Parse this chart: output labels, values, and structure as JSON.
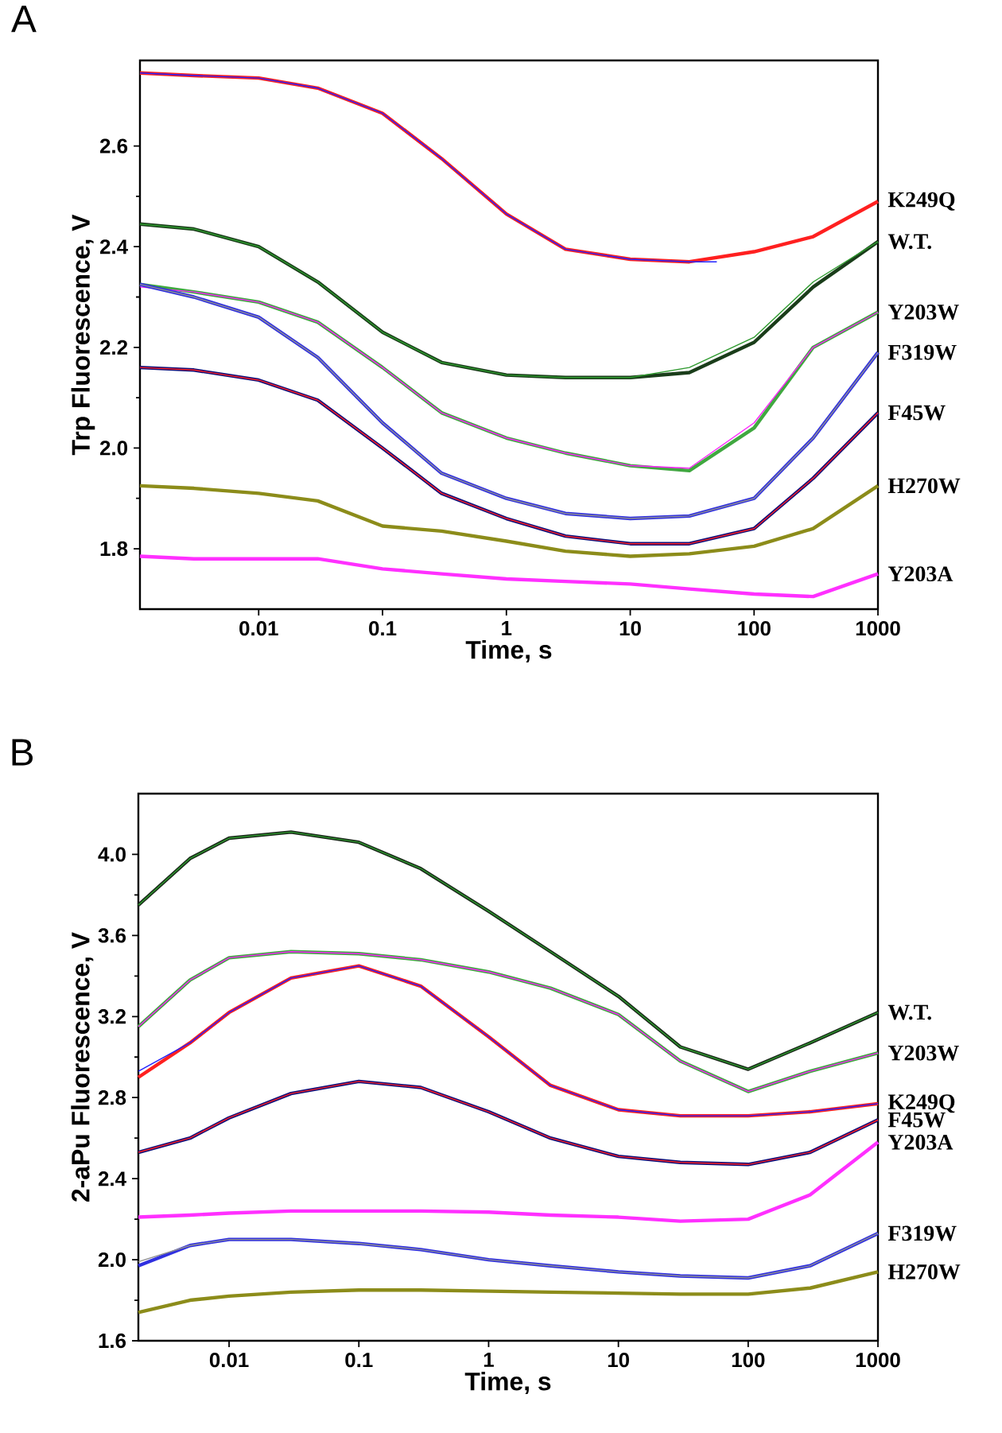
{
  "chart_data": [
    {
      "type": "line",
      "title": "A",
      "xlabel": "Time, s",
      "ylabel": "Trp Fluorescence, V",
      "log": "x",
      "xlim": [
        0.0011,
        1000
      ],
      "ylim": [
        1.68,
        2.77
      ],
      "xticks": [
        0.01,
        0.1,
        1,
        10,
        100,
        1000
      ],
      "yticks": [
        {
          "value": 1.8,
          "label": "1.8"
        },
        {
          "value": 2.0,
          "label": "2.0"
        },
        2.2,
        2.4,
        2.6
      ],
      "x": [
        0.0011,
        0.003,
        0.01,
        0.03,
        0.1,
        0.3,
        1,
        3,
        10,
        30,
        100,
        300,
        1000
      ],
      "series": [
        {
          "name": "K249Q",
          "color": "#ff2020",
          "values": [
            2.745,
            2.74,
            2.735,
            2.715,
            2.665,
            2.575,
            2.465,
            2.395,
            2.375,
            2.37,
            2.39,
            2.42,
            2.49
          ]
        },
        {
          "color": "#2020ff",
          "x": [
            0.0011,
            0.003,
            0.01,
            0.03,
            0.1,
            0.3,
            1,
            3,
            10,
            30,
            50
          ],
          "values": [
            2.745,
            2.74,
            2.735,
            2.715,
            2.665,
            2.575,
            2.465,
            2.395,
            2.375,
            2.37,
            2.37
          ]
        },
        {
          "name": "W.T.",
          "color": "#1a3d1a",
          "values": [
            2.445,
            2.435,
            2.4,
            2.33,
            2.23,
            2.17,
            2.145,
            2.14,
            2.14,
            2.15,
            2.21,
            2.32,
            2.41
          ]
        },
        {
          "color": "#2e9a2e",
          "values": [
            2.445,
            2.435,
            2.4,
            2.33,
            2.23,
            2.17,
            2.145,
            2.14,
            2.14,
            2.16,
            2.22,
            2.33,
            2.41
          ]
        },
        {
          "name": "Y203W",
          "color": "#40a840",
          "values": [
            2.325,
            2.31,
            2.29,
            2.25,
            2.16,
            2.07,
            2.02,
            1.99,
            1.965,
            1.955,
            2.04,
            2.2,
            2.27
          ]
        },
        {
          "color": "#ff20ff",
          "values": [
            2.32,
            2.31,
            2.29,
            2.25,
            2.16,
            2.07,
            2.02,
            1.99,
            1.965,
            1.96,
            2.05,
            2.2,
            2.27
          ]
        },
        {
          "name": "F319W",
          "color": "#3030e0",
          "values": [
            2.325,
            2.3,
            2.26,
            2.18,
            2.05,
            1.95,
            1.9,
            1.87,
            1.86,
            1.865,
            1.9,
            2.02,
            2.19
          ]
        },
        {
          "color": "#909090",
          "values": [
            2.325,
            2.3,
            2.26,
            2.18,
            2.05,
            1.95,
            1.9,
            1.87,
            1.86,
            1.865,
            1.9,
            2.02,
            2.19
          ]
        },
        {
          "name": "F45W",
          "color": "#10107a",
          "values": [
            2.16,
            2.155,
            2.135,
            2.095,
            2.0,
            1.91,
            1.86,
            1.825,
            1.81,
            1.81,
            1.84,
            1.94,
            2.07
          ]
        },
        {
          "color": "#ff2020",
          "values": [
            2.16,
            2.155,
            2.135,
            2.095,
            2.0,
            1.91,
            1.86,
            1.825,
            1.81,
            1.81,
            1.84,
            1.94,
            2.07
          ]
        },
        {
          "name": "H270W",
          "color": "#8c8c1a",
          "values": [
            1.925,
            1.92,
            1.91,
            1.895,
            1.845,
            1.835,
            1.815,
            1.795,
            1.785,
            1.79,
            1.805,
            1.84,
            1.925
          ]
        },
        {
          "name": "Y203A",
          "color": "#ff30ff",
          "values": [
            1.785,
            1.78,
            1.78,
            1.78,
            1.76,
            1.75,
            1.74,
            1.735,
            1.73,
            1.72,
            1.71,
            1.705,
            1.75
          ]
        }
      ]
    },
    {
      "type": "line",
      "title": "B",
      "xlabel": "Time, s",
      "ylabel": "2-aPu Fluorescence, V",
      "log": "x",
      "xlim": [
        0.002,
        1000
      ],
      "ylim": [
        1.6,
        4.3
      ],
      "xticks": [
        0.01,
        0.1,
        1,
        10,
        100,
        1000
      ],
      "yticks": [
        1.6,
        {
          "value": 2.0,
          "label": "2.0"
        },
        2.4,
        2.8,
        3.2,
        3.6,
        {
          "value": 4.0,
          "label": "4.0"
        }
      ],
      "x": [
        0.002,
        0.005,
        0.01,
        0.03,
        0.1,
        0.3,
        1,
        3,
        10,
        30,
        100,
        300,
        1000
      ],
      "series": [
        {
          "name": "W.T.",
          "color": "#1a2a1a",
          "values": [
            3.75,
            3.98,
            4.08,
            4.11,
            4.06,
            3.93,
            3.72,
            3.52,
            3.3,
            3.05,
            2.94,
            3.07,
            3.22
          ]
        },
        {
          "color": "#2e9a2e",
          "values": [
            3.75,
            3.98,
            4.08,
            4.11,
            4.06,
            3.93,
            3.72,
            3.52,
            3.3,
            3.05,
            2.94,
            3.07,
            3.22
          ]
        },
        {
          "name": "Y203W",
          "color": "#40a840",
          "values": [
            3.15,
            3.38,
            3.49,
            3.52,
            3.51,
            3.48,
            3.42,
            3.34,
            3.21,
            2.98,
            2.83,
            2.93,
            3.02
          ]
        },
        {
          "color": "#ff20ff",
          "values": [
            3.15,
            3.38,
            3.49,
            3.52,
            3.51,
            3.48,
            3.42,
            3.34,
            3.21,
            2.98,
            2.83,
            2.93,
            3.02
          ]
        },
        {
          "name": "K249Q",
          "color": "#ff2020",
          "values": [
            2.9,
            3.07,
            3.22,
            3.39,
            3.45,
            3.35,
            3.1,
            2.86,
            2.74,
            2.71,
            2.71,
            2.73,
            2.77
          ]
        },
        {
          "color": "#2020ff",
          "values": [
            2.93,
            3.07,
            3.22,
            3.39,
            3.45,
            3.35,
            3.1,
            2.86,
            2.74,
            2.71,
            2.71,
            2.73,
            2.77
          ]
        },
        {
          "name": "F45W",
          "color": "#10107a",
          "values": [
            2.53,
            2.6,
            2.7,
            2.82,
            2.88,
            2.85,
            2.73,
            2.6,
            2.51,
            2.48,
            2.47,
            2.53,
            2.69
          ]
        },
        {
          "color": "#ff2020",
          "values": [
            2.53,
            2.6,
            2.7,
            2.82,
            2.88,
            2.85,
            2.73,
            2.6,
            2.51,
            2.48,
            2.47,
            2.53,
            2.69
          ]
        },
        {
          "name": "Y203A",
          "color": "#ff30ff",
          "values": [
            2.21,
            2.22,
            2.23,
            2.24,
            2.24,
            2.24,
            2.235,
            2.22,
            2.21,
            2.19,
            2.2,
            2.32,
            2.58
          ]
        },
        {
          "name": "F319W",
          "color": "#3030e0",
          "values": [
            1.97,
            2.07,
            2.1,
            2.1,
            2.08,
            2.05,
            2.0,
            1.97,
            1.94,
            1.92,
            1.91,
            1.97,
            2.13
          ]
        },
        {
          "color": "#909090",
          "values": [
            1.99,
            2.07,
            2.1,
            2.1,
            2.08,
            2.05,
            2.0,
            1.97,
            1.94,
            1.92,
            1.91,
            1.97,
            2.13
          ]
        },
        {
          "name": "H270W",
          "color": "#8c8c1a",
          "values": [
            1.74,
            1.8,
            1.82,
            1.84,
            1.85,
            1.85,
            1.845,
            1.84,
            1.835,
            1.83,
            1.83,
            1.86,
            1.94
          ]
        }
      ]
    }
  ]
}
